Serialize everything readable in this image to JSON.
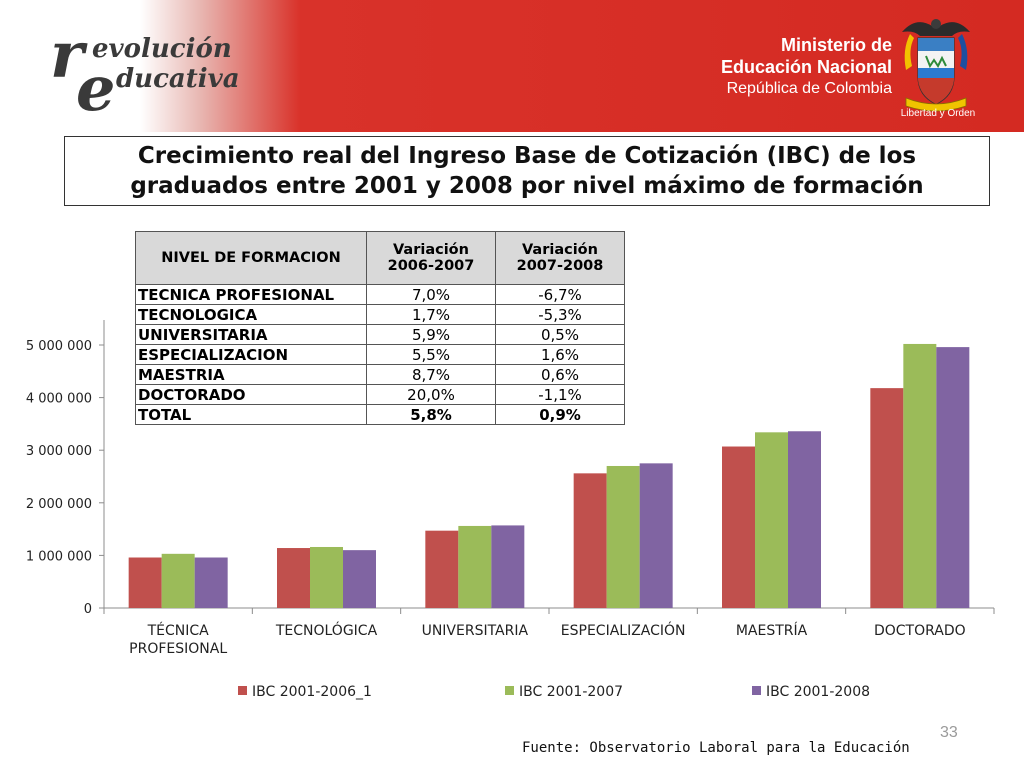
{
  "header": {
    "logo_text_line1": "evolución",
    "logo_text_line2": "ducativa",
    "logo_letter_r": "r",
    "logo_letter_e": "e",
    "ministry_line1": "Ministerio de",
    "ministry_line2": "Educación Nacional",
    "ministry_line3": "República de Colombia",
    "crest_caption": "Libertad y Orden",
    "crest_icon": "coat-of-arms-icon",
    "brand_red": "#d42a22"
  },
  "title": {
    "line1": "Crecimiento real del Ingreso Base de Cotización (IBC) de los",
    "line2": "graduados entre 2001 y 2008 por nivel máximo de formación"
  },
  "table": {
    "headers": [
      "NIVEL DE FORMACION",
      "Variación 2006-2007",
      "Variación 2007-2008"
    ],
    "rows": [
      [
        "TECNICA PROFESIONAL",
        "7,0%",
        "-6,7%"
      ],
      [
        "TECNOLOGICA",
        "1,7%",
        "-5,3%"
      ],
      [
        "UNIVERSITARIA",
        "5,9%",
        "0,5%"
      ],
      [
        "ESPECIALIZACION",
        "5,5%",
        "1,6%"
      ],
      [
        "MAESTRIA",
        "8,7%",
        "0,6%"
      ],
      [
        "DOCTORADO",
        "20,0%",
        "-1,1%"
      ],
      [
        "TOTAL",
        "5,8%",
        "0,9%"
      ]
    ]
  },
  "chart_data": {
    "type": "bar",
    "title": "",
    "xlabel": "",
    "ylabel": "",
    "ylim": [
      0,
      5000000
    ],
    "yticks": [
      0,
      1000000,
      2000000,
      3000000,
      4000000,
      5000000
    ],
    "ytick_labels": [
      "0",
      "1 000 000",
      "2 000 000",
      "3 000 000",
      "4 000 000",
      "5 000 000"
    ],
    "categories": [
      [
        "TÉCNICA",
        "PROFESIONAL"
      ],
      [
        "TECNOLÓGICA"
      ],
      [
        "UNIVERSITARIA"
      ],
      [
        "ESPECIALIZACIÓN"
      ],
      [
        "MAESTRÍA"
      ],
      [
        "DOCTORADO"
      ]
    ],
    "series": [
      {
        "name": "IBC 2001-2006_1",
        "color": "#c0504d",
        "values": [
          960000,
          1140000,
          1470000,
          2560000,
          3070000,
          4180000
        ]
      },
      {
        "name": "IBC 2001-2007",
        "color": "#9bbb59",
        "values": [
          1030000,
          1160000,
          1560000,
          2700000,
          3340000,
          5020000
        ]
      },
      {
        "name": "IBC 2001-2008",
        "color": "#8064a2",
        "values": [
          960000,
          1100000,
          1570000,
          2750000,
          3360000,
          4960000
        ]
      }
    ],
    "grid": false,
    "legend_position": "bottom"
  },
  "footer": {
    "page_number": "33",
    "source": "Fuente: Observatorio Laboral para la Educación"
  }
}
